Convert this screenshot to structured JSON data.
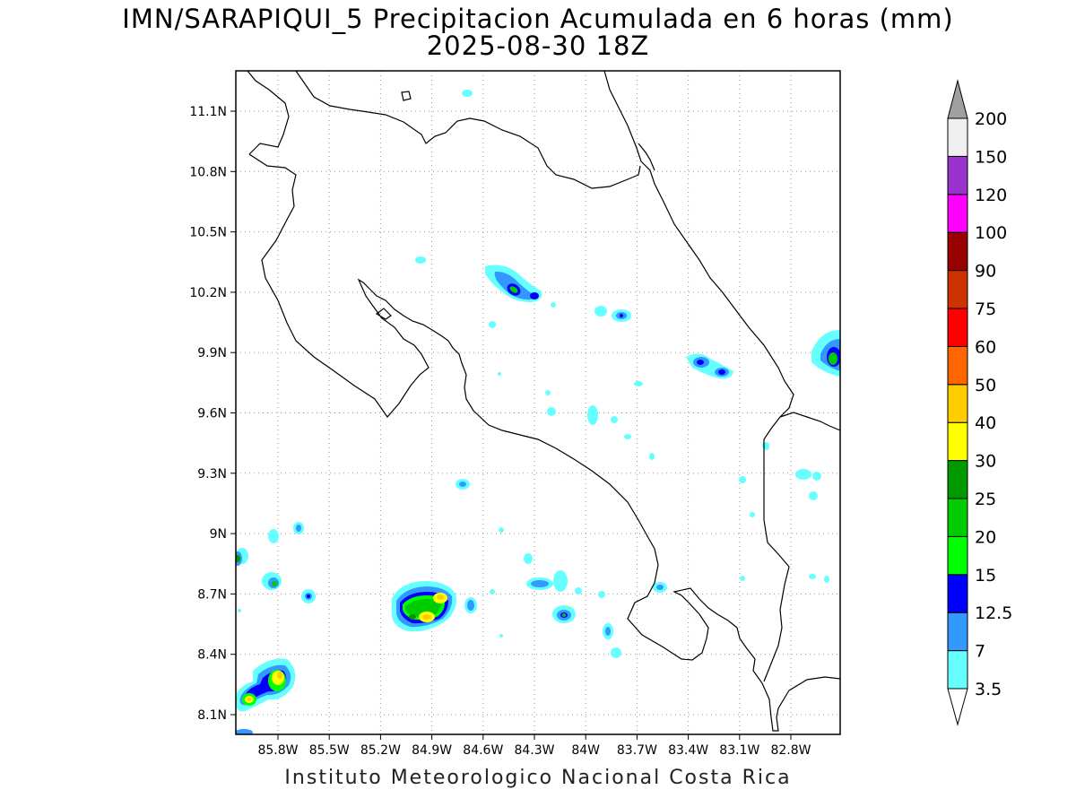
{
  "title": "IMN/SARAPIQUI_5 Precipitacion Acumulada en 6 horas (mm)",
  "subtitle": "2025-08-30 18Z",
  "footer": "Instituto Meteorologico Nacional Costa Rica",
  "map": {
    "lon_range": [
      -86.0,
      -83.0
    ],
    "lat_range": [
      8.0,
      11.3
    ],
    "lat_ticks": [
      "11.1N",
      "10.8N",
      "10.5N",
      "10.2N",
      "9.9N",
      "9.6N",
      "9.3N",
      "9N",
      "8.7N",
      "8.4N",
      "8.1N"
    ],
    "lon_ticks": [
      "85.8W",
      "85.5W",
      "85.2W",
      "84.9W",
      "84.6W",
      "84.3W",
      "84W",
      "83.7W",
      "83.4W",
      "83.1W",
      "82.8W"
    ],
    "gridlines": "dotted"
  },
  "colorbar": {
    "levels": [
      "3.5",
      "7",
      "12.5",
      "15",
      "20",
      "25",
      "30",
      "40",
      "50",
      "60",
      "75",
      "90",
      "100",
      "120",
      "150",
      "200"
    ],
    "colors": [
      "#66ffff",
      "#3399ff",
      "#0000ff",
      "#00ff00",
      "#00cc00",
      "#009900",
      "#ffff00",
      "#ffcc00",
      "#ff6600",
      "#ff0000",
      "#cc3300",
      "#990000",
      "#ff00ff",
      "#9933cc",
      "#f0f0f0",
      "#a0a0a0"
    ]
  },
  "precip_cells": [
    {
      "name": "cell-northwest-bay",
      "max_level": "7"
    },
    {
      "name": "cell-san-carlos",
      "max_level": "15"
    },
    {
      "name": "cell-sarapiqui",
      "max_level": "12.5"
    },
    {
      "name": "cell-caribbean-north",
      "max_level": "15"
    },
    {
      "name": "cell-caribbean-east",
      "max_level": "20"
    },
    {
      "name": "cell-osa-west",
      "max_level": "40"
    },
    {
      "name": "cell-nicoya-south",
      "max_level": "30"
    },
    {
      "name": "cell-pacific-central",
      "max_level": "15"
    }
  ]
}
